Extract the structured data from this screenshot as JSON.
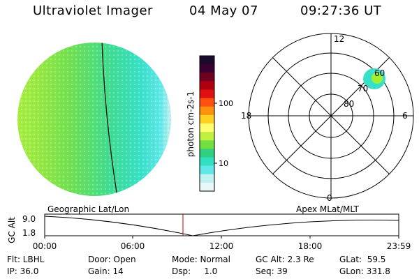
{
  "header": {
    "title": "Ultraviolet Imager",
    "date": "04 May 07",
    "time": "09:27:36 UT"
  },
  "colorbar": {
    "axis_label": "photon cm-2s-1",
    "ticks": [
      "100",
      "10"
    ],
    "colors": [
      "#1a0a2e",
      "#3a0030",
      "#700020",
      "#b00010",
      "#e01010",
      "#ff5010",
      "#ff9010",
      "#ffd020",
      "#ffff70",
      "#c0f040",
      "#70e040",
      "#30d080",
      "#30e0c0",
      "#60e8e8",
      "#c0f0f0",
      "#e8f8f8"
    ]
  },
  "polar_plot": {
    "mlt_labels": [
      "12",
      "18",
      "6",
      "0"
    ],
    "lat_labels": [
      "60",
      "70",
      "80"
    ],
    "spot_colors": [
      "#38e0c8",
      "#a0f030"
    ]
  },
  "timeline": {
    "left_label": "Geographic Lat/Lon",
    "right_label": "Apex MLat/MLT",
    "y_axis_label": "GC Alt",
    "y_ticks": [
      "9.0",
      "1.8"
    ],
    "x_ticks": [
      "00:00",
      "06:00",
      "12:00",
      "18:00",
      "23:59"
    ],
    "current_time_marker_color": "#c00000"
  },
  "info": {
    "flt": "Flt: LBHL",
    "ip": "IP: 36.0",
    "door": "Door: Open",
    "gain": "Gain: 14",
    "mode": "Mode: Normal",
    "dsp": "Dsp:     1.0",
    "gcalt": "GC Alt: 2.3 Re",
    "seq": "Seq: 39",
    "glat": "GLat:  59.5",
    "glon": "GLon: 331.8"
  },
  "earth_image": {
    "colors": [
      "#a8ee40",
      "#98e840",
      "#70e050",
      "#40dc90",
      "#38e0c8",
      "#60e8e8",
      "#c8f0f0"
    ]
  }
}
